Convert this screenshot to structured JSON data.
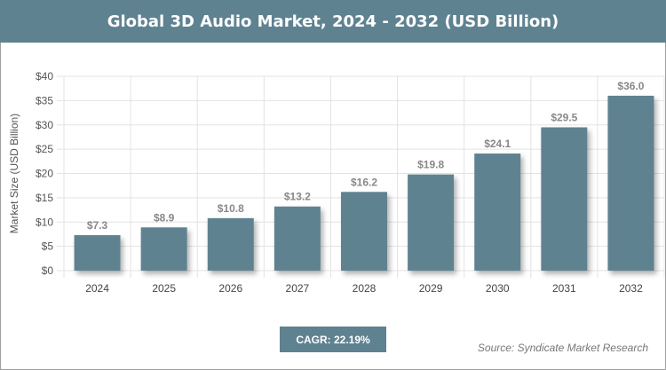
{
  "title": "Global 3D Audio Market, 2024 - 2032 (USD Billion)",
  "cagr": "CAGR: 22.19%",
  "source": "Source: Syndicate Market Research",
  "colors": {
    "bar": "#5f8291",
    "header": "#5f8291"
  },
  "chart_data": {
    "type": "bar",
    "title": "Global 3D Audio Market, 2024 - 2032 (USD Billion)",
    "xlabel": "",
    "ylabel": "Market Size (USD Billion)",
    "categories": [
      "2024",
      "2025",
      "2026",
      "2027",
      "2028",
      "2029",
      "2030",
      "2031",
      "2032"
    ],
    "values": [
      7.3,
      8.9,
      10.8,
      13.2,
      16.2,
      19.8,
      24.1,
      29.5,
      36.0
    ],
    "data_labels": [
      "$7.3",
      "$8.9",
      "$10.8",
      "$13.2",
      "$16.2",
      "$19.8",
      "$24.1",
      "$29.5",
      "$36.0"
    ],
    "yticks": [
      "$0",
      "$5",
      "$10",
      "$15",
      "$20",
      "$25",
      "$30",
      "$35",
      "$40"
    ],
    "ylim": [
      0,
      40
    ],
    "grid": true,
    "legend": "none"
  }
}
